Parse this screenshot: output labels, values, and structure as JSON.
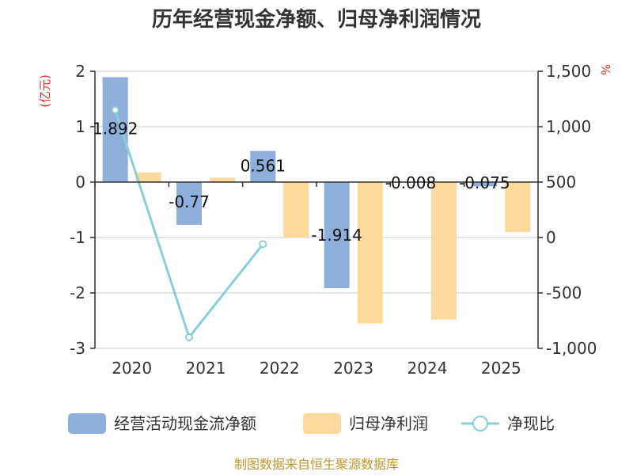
{
  "chart_data": {
    "type": "bar",
    "title": "历年经营现金净额、归母净利润情况",
    "categories": [
      "2020",
      "2021",
      "2022",
      "2023",
      "2024",
      "2025"
    ],
    "y_left_unit": "(亿元)",
    "y_right_unit": "%",
    "y_left_ticks": [
      "2",
      "1",
      "0",
      "-1",
      "-2",
      "-3"
    ],
    "y_right_ticks": [
      "1,500",
      "1,000",
      "500",
      "0",
      "-500",
      "-1,000"
    ],
    "y_left_range": [
      -3,
      2
    ],
    "y_right_range": [
      -1000,
      1500
    ],
    "series": [
      {
        "name": "经营活动现金流净额",
        "type": "bar",
        "axis": "left",
        "color": "#8eaedc",
        "values": [
          1.892,
          -0.77,
          0.561,
          -1.914,
          -0.008,
          -0.075
        ],
        "labels": [
          "1.892",
          "-0.77",
          "0.561",
          "-1.914",
          "-0.008",
          "-0.075"
        ]
      },
      {
        "name": "归母净利润",
        "type": "bar",
        "axis": "left",
        "color": "#fdd99b",
        "values": [
          0.17,
          0.08,
          -1.0,
          -2.55,
          -2.48,
          -0.9
        ]
      },
      {
        "name": "净现比",
        "type": "line",
        "axis": "right",
        "color": "#87d0d6",
        "values": [
          1150,
          -900,
          -60,
          null,
          null,
          null
        ]
      }
    ],
    "source": "制图数据来自恒生聚源数据库"
  }
}
